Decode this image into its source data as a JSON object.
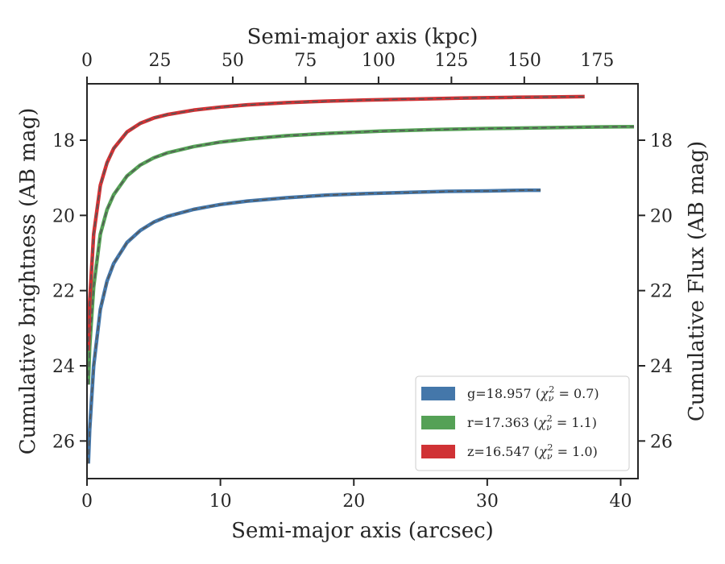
{
  "chart_data": {
    "type": "line",
    "xlabel_bottom": "Semi-major axis (arcsec)",
    "xlabel_top": "Semi-major axis (kpc)",
    "ylabel_left": "Cumulative brightness (AB mag)",
    "ylabel_right": "Cumulative Flux (AB mag)",
    "xlim": [
      0,
      41.3
    ],
    "ylim": [
      27.0,
      16.5
    ],
    "y_inverted": true,
    "xticks": [
      0,
      10,
      20,
      30,
      40
    ],
    "xtick_labels": [
      "0",
      "10",
      "20",
      "30",
      "40"
    ],
    "yticks": [
      18,
      20,
      22,
      24,
      26
    ],
    "ytick_labels": [
      "18",
      "20",
      "22",
      "24",
      "26"
    ],
    "top_xticks_kpc": [
      0,
      25,
      50,
      75,
      100,
      125,
      150,
      175
    ],
    "top_xtick_labels": [
      "0",
      "25",
      "50",
      "75",
      "100",
      "125",
      "150",
      "175"
    ],
    "top_xlim_kpc": [
      0,
      189
    ],
    "legend_position": "lower-right",
    "series": [
      {
        "name": "g",
        "legend_prefix": "g=18.957 (",
        "legend_chi": "χ",
        "legend_sub": "ν",
        "legend_sup": "2",
        "legend_suffix": " = 0.7)",
        "color": "#4477aa",
        "x": [
          0.1,
          0.2,
          0.5,
          1,
          1.5,
          2,
          3,
          4,
          5,
          6,
          8,
          10,
          12,
          15,
          18,
          21,
          24,
          27,
          30,
          33,
          34
        ],
        "y": [
          26.6,
          25.7,
          24.0,
          22.5,
          21.75,
          21.28,
          20.72,
          20.4,
          20.18,
          20.03,
          19.84,
          19.71,
          19.62,
          19.53,
          19.46,
          19.42,
          19.39,
          19.36,
          19.35,
          19.33,
          19.33
        ]
      },
      {
        "name": "r",
        "legend_prefix": "r=17.363 (",
        "legend_chi": "χ",
        "legend_sub": "ν",
        "legend_sup": "2",
        "legend_suffix": " = 1.1)",
        "color": "#55a156",
        "x": [
          0.1,
          0.2,
          0.5,
          1,
          1.5,
          2,
          3,
          4,
          5,
          6,
          8,
          10,
          12,
          15,
          18,
          22,
          26,
          30,
          34,
          38,
          41
        ],
        "y": [
          24.5,
          23.5,
          21.9,
          20.5,
          19.85,
          19.45,
          18.95,
          18.66,
          18.47,
          18.34,
          18.17,
          18.05,
          17.97,
          17.88,
          17.82,
          17.76,
          17.72,
          17.69,
          17.67,
          17.65,
          17.64
        ]
      },
      {
        "name": "z",
        "legend_prefix": "z=16.547 (",
        "legend_chi": "χ",
        "legend_sub": "ν",
        "legend_sup": "2",
        "legend_suffix": " = 1.0)",
        "color": "#d03235",
        "x": [
          0.1,
          0.2,
          0.5,
          1,
          1.5,
          2,
          3,
          4,
          5,
          6,
          8,
          10,
          12,
          15,
          18,
          21,
          24,
          28,
          32,
          35,
          37.3
        ],
        "y": [
          23.6,
          22.3,
          20.5,
          19.2,
          18.6,
          18.22,
          17.78,
          17.55,
          17.41,
          17.32,
          17.2,
          17.12,
          17.06,
          17.0,
          16.96,
          16.93,
          16.91,
          16.88,
          16.86,
          16.85,
          16.84
        ]
      }
    ]
  }
}
